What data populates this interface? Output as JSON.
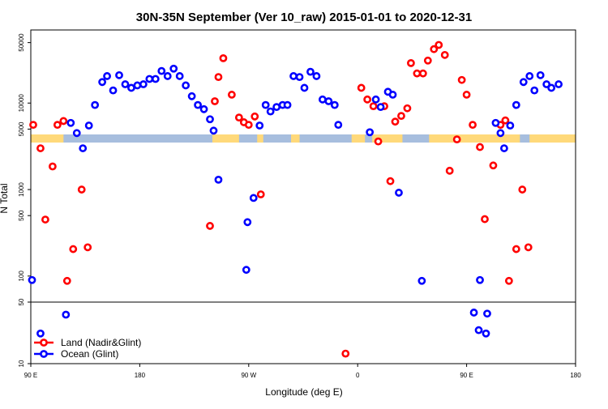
{
  "chart_data": {
    "type": "scatter",
    "title": "30N-35N September (Ver 10_raw)   2015-01-01 to 2020-12-31",
    "xlabel": "Longitude (deg E)",
    "ylabel": "N Total",
    "x_axis": {
      "range_deg": [
        90,
        450
      ],
      "ticks": [
        {
          "value": 90,
          "label": "90 E"
        },
        {
          "value": 180,
          "label": "180"
        },
        {
          "value": 270,
          "label": "90 W"
        },
        {
          "value": 360,
          "label": "0"
        },
        {
          "value": 450,
          "label": "90 E"
        },
        {
          "value": 540,
          "label": "180"
        }
      ],
      "range": [
        90,
        540
      ]
    },
    "upper_panel": {
      "scale": "log",
      "ylim": [
        50,
        70000
      ],
      "yticks": [
        {
          "value": 100,
          "label": "100"
        },
        {
          "value": 500,
          "label": "500"
        },
        {
          "value": 1000,
          "label": "1000"
        },
        {
          "value": 5000,
          "label": "5000"
        },
        {
          "value": 10000,
          "label": "10000"
        },
        {
          "value": 50000,
          "label": "50000"
        }
      ]
    },
    "lower_panel": {
      "scale": "log",
      "ylim": [
        10,
        50
      ],
      "yticks": [
        {
          "value": 10,
          "label": "10"
        },
        {
          "value": 50,
          "label": "50"
        }
      ]
    },
    "series": [
      {
        "name": "Land (Nadir&Glint)",
        "color": "#ff0000",
        "points": [
          [
            92,
            5600
          ],
          [
            98,
            3000
          ],
          [
            102,
            450
          ],
          [
            108,
            1850
          ],
          [
            112,
            5600
          ],
          [
            117,
            6200
          ],
          [
            120,
            88
          ],
          [
            125,
            205
          ],
          [
            132,
            1000
          ],
          [
            137,
            215
          ],
          [
            238,
            380
          ],
          [
            242,
            10500
          ],
          [
            245,
            20000
          ],
          [
            249,
            33000
          ],
          [
            256,
            12500
          ],
          [
            262,
            6800
          ],
          [
            266,
            6000
          ],
          [
            270,
            5600
          ],
          [
            275,
            7000
          ],
          [
            280,
            880
          ],
          [
            350,
            13
          ],
          [
            363,
            15000
          ],
          [
            368,
            11000
          ],
          [
            373,
            9200
          ],
          [
            377,
            3600
          ],
          [
            382,
            9200
          ],
          [
            387,
            1250
          ],
          [
            391,
            6100
          ],
          [
            396,
            7100
          ],
          [
            401,
            8700
          ],
          [
            404,
            29000
          ],
          [
            409,
            22000
          ],
          [
            414,
            22000
          ],
          [
            418,
            31000
          ],
          [
            423,
            42000
          ],
          [
            427,
            47000
          ],
          [
            432,
            36000
          ],
          [
            436,
            1650
          ],
          [
            442,
            3800
          ],
          [
            446,
            18500
          ],
          [
            450,
            12500
          ],
          [
            455,
            5600
          ],
          [
            461,
            3100
          ],
          [
            465,
            455
          ],
          [
            472,
            1900
          ],
          [
            478,
            5600
          ],
          [
            482,
            6300
          ],
          [
            485,
            88
          ],
          [
            491,
            205
          ],
          [
            496,
            1000
          ],
          [
            501,
            215
          ]
        ]
      },
      {
        "name": "Ocean (Glint)",
        "color": "#0000ff",
        "points": [
          [
            91,
            90
          ],
          [
            98,
            22
          ],
          [
            119,
            36
          ],
          [
            123,
            5900
          ],
          [
            128,
            4500
          ],
          [
            133,
            3000
          ],
          [
            138,
            5500
          ],
          [
            143,
            9500
          ],
          [
            149,
            17500
          ],
          [
            153,
            20500
          ],
          [
            158,
            14000
          ],
          [
            163,
            21000
          ],
          [
            168,
            16500
          ],
          [
            173,
            15000
          ],
          [
            178,
            16000
          ],
          [
            183,
            16500
          ],
          [
            188,
            19000
          ],
          [
            193,
            19000
          ],
          [
            198,
            23500
          ],
          [
            203,
            20500
          ],
          [
            208,
            25000
          ],
          [
            213,
            20500
          ],
          [
            218,
            16000
          ],
          [
            223,
            12000
          ],
          [
            228,
            9500
          ],
          [
            233,
            8500
          ],
          [
            238,
            6500
          ],
          [
            241,
            4800
          ],
          [
            245,
            1300
          ],
          [
            268,
            118
          ],
          [
            269,
            420
          ],
          [
            274,
            800
          ],
          [
            279,
            5500
          ],
          [
            284,
            9500
          ],
          [
            288,
            8000
          ],
          [
            293,
            9000
          ],
          [
            298,
            9500
          ],
          [
            302,
            9500
          ],
          [
            307,
            20500
          ],
          [
            312,
            20000
          ],
          [
            316,
            15000
          ],
          [
            321,
            23000
          ],
          [
            326,
            20500
          ],
          [
            331,
            11000
          ],
          [
            336,
            10500
          ],
          [
            341,
            9500
          ],
          [
            344,
            5600
          ],
          [
            370,
            4600
          ],
          [
            375,
            11000
          ],
          [
            379,
            9000
          ],
          [
            385,
            13500
          ],
          [
            389,
            12500
          ],
          [
            394,
            920
          ],
          [
            413,
            88
          ],
          [
            456,
            38
          ],
          [
            460,
            24
          ],
          [
            461,
            90
          ],
          [
            466,
            22
          ],
          [
            467,
            37
          ],
          [
            474,
            5900
          ],
          [
            478,
            4500
          ],
          [
            481,
            3000
          ],
          [
            486,
            5500
          ],
          [
            491,
            9500
          ],
          [
            497,
            17500
          ],
          [
            502,
            20500
          ],
          [
            506,
            14000
          ],
          [
            511,
            21000
          ],
          [
            516,
            16500
          ],
          [
            520,
            15000
          ],
          [
            526,
            16500
          ]
        ]
      }
    ],
    "land_ocean_strip": {
      "land_color": "#ffd97a",
      "ocean_color": "#a7bede",
      "land_ranges": [
        [
          90,
          117
        ],
        [
          240,
          262
        ],
        [
          277,
          282
        ],
        [
          305,
          312
        ],
        [
          355,
          366
        ],
        [
          372,
          397
        ],
        [
          419,
          494
        ],
        [
          502,
          540
        ]
      ]
    },
    "legend": {
      "position": "bottom-left",
      "entries": [
        "Land (Nadir&Glint)",
        "Ocean (Glint)"
      ]
    }
  }
}
